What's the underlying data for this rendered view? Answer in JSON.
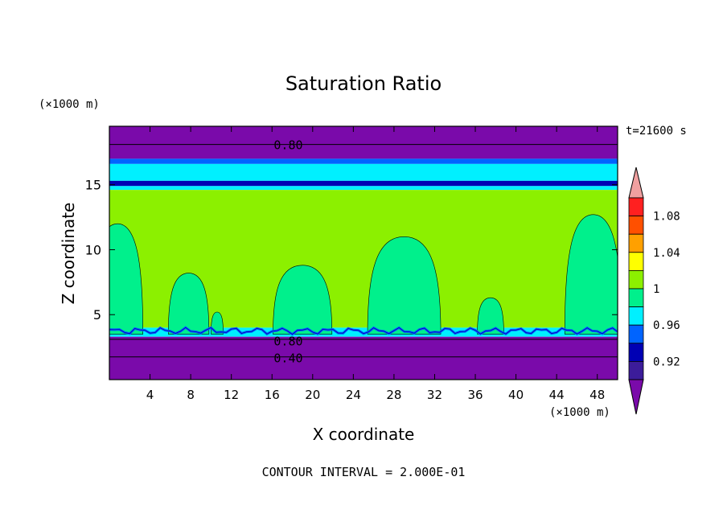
{
  "chart_data": {
    "type": "heatmap",
    "title": "Saturation Ratio",
    "xlabel": "X coordinate",
    "ylabel": "Z coordinate",
    "x_unit": "(×1000 m)",
    "y_unit": "(×1000 m)",
    "time_label": "t=21600 s",
    "footer": "CONTOUR INTERVAL = 2.000E-01",
    "xlim": [
      0,
      50
    ],
    "ylim": [
      0,
      19.5
    ],
    "x_ticks": [
      4,
      8,
      12,
      16,
      20,
      24,
      28,
      32,
      36,
      40,
      44,
      48
    ],
    "y_ticks": [
      5,
      10,
      15
    ],
    "contour_labels": [
      {
        "text": "0.80",
        "x": 17.6,
        "y": 18.1
      },
      {
        "text": "0.80",
        "x": 17.6,
        "y": 3.0
      },
      {
        "text": "0.40",
        "x": 17.6,
        "y": 1.7
      }
    ],
    "colorbar": {
      "tick_labels": [
        "0.92",
        "0.96",
        "1",
        "1.04",
        "1.08"
      ],
      "levels": [
        {
          "max": 0.9,
          "color": "#7a0aaa"
        },
        {
          "max": 0.92,
          "color": "#3c1c9a"
        },
        {
          "max": 0.94,
          "color": "#0000b4"
        },
        {
          "max": 0.96,
          "color": "#0064ff"
        },
        {
          "max": 0.98,
          "color": "#00f0ff"
        },
        {
          "max": 1.0,
          "color": "#00f08c"
        },
        {
          "max": 1.02,
          "color": "#8cf000"
        },
        {
          "max": 1.04,
          "color": "#ffff00"
        },
        {
          "max": 1.06,
          "color": "#ffa000"
        },
        {
          "max": 1.08,
          "color": "#ff5000"
        },
        {
          "max": 1.1,
          "color": "#ff2020"
        },
        {
          "max": 9.99,
          "color": "#f0a0a0"
        }
      ]
    },
    "layers": [
      {
        "z_bottom": 17.0,
        "z_top": 19.5,
        "color": "#7a0aaa"
      },
      {
        "z_bottom": 16.6,
        "z_top": 17.0,
        "color": "#0064ff"
      },
      {
        "z_bottom": 15.3,
        "z_top": 16.6,
        "color": "#00f0ff"
      },
      {
        "z_bottom": 14.9,
        "z_top": 15.3,
        "color": "#0000b4"
      },
      {
        "z_bottom": 14.6,
        "z_top": 14.9,
        "color": "#00f0ff"
      },
      {
        "z_bottom": 4.0,
        "z_top": 14.6,
        "color": "#8cf000"
      },
      {
        "z_bottom": 3.3,
        "z_top": 4.0,
        "color": "#00f0ff"
      },
      {
        "z_bottom": 0.0,
        "z_top": 3.3,
        "color": "#7a0aaa"
      }
    ],
    "plumes": [
      {
        "x_center": 0.8,
        "half_width": 2.5,
        "z_top": 12.0,
        "color": "#00f08c"
      },
      {
        "x_center": 7.8,
        "half_width": 2.0,
        "z_top": 8.2,
        "color": "#00f08c"
      },
      {
        "x_center": 10.6,
        "half_width": 0.6,
        "z_top": 5.2,
        "color": "#00f08c"
      },
      {
        "x_center": 19.0,
        "half_width": 2.9,
        "z_top": 8.8,
        "color": "#00f08c"
      },
      {
        "x_center": 29.0,
        "half_width": 3.6,
        "z_top": 11.0,
        "color": "#00f08c"
      },
      {
        "x_center": 37.5,
        "half_width": 1.3,
        "z_top": 6.3,
        "color": "#00f08c"
      },
      {
        "x_center": 47.6,
        "half_width": 2.8,
        "z_top": 12.7,
        "color": "#00f08c"
      }
    ]
  }
}
